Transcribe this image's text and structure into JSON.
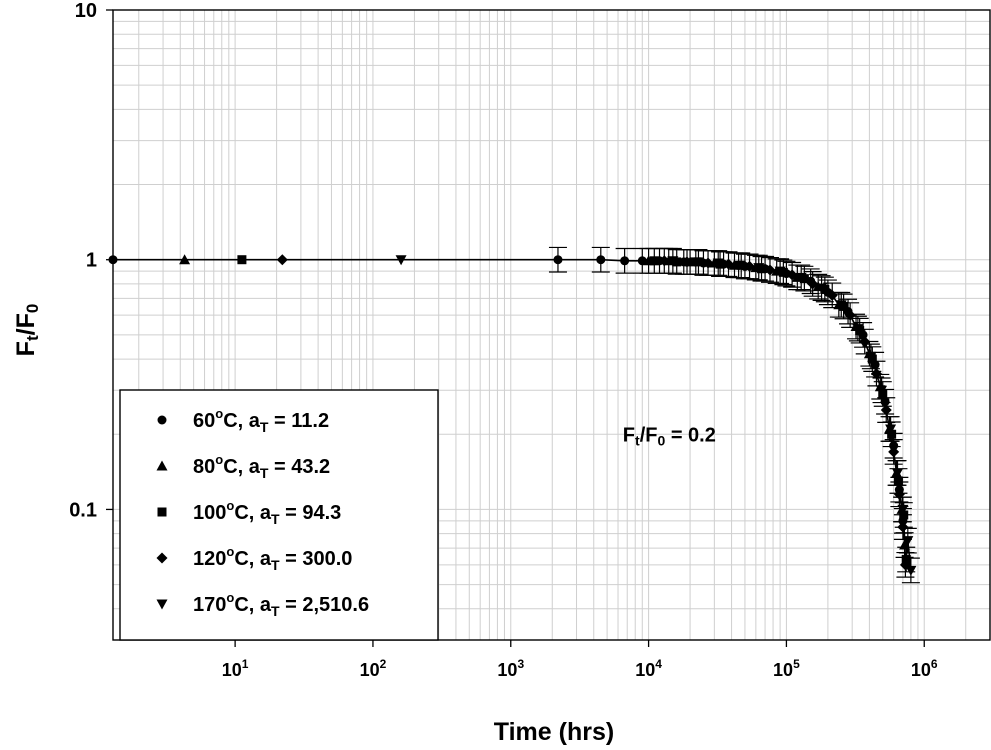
{
  "chart_data": {
    "type": "scatter",
    "title": "",
    "xlabel": "Time (hrs)",
    "ylabel": {
      "base": "F",
      "sub1": "t",
      "slash": "/F",
      "sub2": "0"
    },
    "x_scale": "log",
    "y_scale": "log",
    "xlim": [
      1.3,
      3000000
    ],
    "ylim": [
      0.03,
      10
    ],
    "grid": true,
    "legend_position": "bottom-left",
    "x_ticks": [
      {
        "base": "10",
        "exp": "1",
        "value": 10
      },
      {
        "base": "10",
        "exp": "2",
        "value": 100
      },
      {
        "base": "10",
        "exp": "3",
        "value": 1000
      },
      {
        "base": "10",
        "exp": "4",
        "value": 10000
      },
      {
        "base": "10",
        "exp": "5",
        "value": 100000
      },
      {
        "base": "10",
        "exp": "6",
        "value": 1000000
      }
    ],
    "y_ticks": [
      {
        "label": "0.1",
        "value": 0.1
      },
      {
        "label": "1",
        "value": 1
      },
      {
        "label": "10",
        "value": 10
      }
    ],
    "annotation": {
      "base": "F",
      "sub1": "t",
      "slash": "/F",
      "sub2": "0",
      "rest": " = 0.2",
      "x": 6500,
      "y": 0.2
    },
    "series": [
      {
        "name_pre": "60",
        "name_mid": "C, a",
        "name_sub": "T",
        "name_post": " = 11.2",
        "marker": "circle",
        "x": [
          1.3,
          2200,
          4500,
          6700,
          9000,
          12000,
          18000,
          25000,
          35000,
          50000,
          70000,
          100000,
          150000,
          200000,
          280000,
          360000,
          440000,
          520000,
          600000,
          660000,
          700000
        ],
        "y": [
          1.0,
          1.0,
          1.0,
          0.99,
          0.99,
          0.99,
          0.98,
          0.97,
          0.96,
          0.94,
          0.92,
          0.88,
          0.82,
          0.74,
          0.62,
          0.5,
          0.38,
          0.27,
          0.18,
          0.12,
          0.09
        ]
      },
      {
        "name_pre": "80",
        "name_mid": "C, a",
        "name_sub": "T",
        "name_post": " = 43.2",
        "marker": "triangle",
        "x": [
          4.3,
          10000,
          14000,
          20000,
          30000,
          42000,
          60000,
          85000,
          120000,
          170000,
          240000,
          320000,
          400000,
          480000,
          560000,
          630000,
          690000,
          720000
        ],
        "y": [
          1.0,
          0.99,
          0.99,
          0.98,
          0.97,
          0.95,
          0.93,
          0.9,
          0.85,
          0.78,
          0.66,
          0.54,
          0.42,
          0.31,
          0.21,
          0.14,
          0.1,
          0.072
        ]
      },
      {
        "name_pre": "100",
        "name_mid": "C, a",
        "name_sub": "T",
        "name_post": " = 94.3",
        "marker": "square",
        "x": [
          11.2,
          11000,
          16000,
          23000,
          33000,
          47000,
          66000,
          95000,
          135000,
          190000,
          260000,
          340000,
          420000,
          500000,
          580000,
          650000,
          710000,
          740000
        ],
        "y": [
          1.0,
          0.99,
          0.98,
          0.98,
          0.96,
          0.95,
          0.92,
          0.89,
          0.84,
          0.76,
          0.65,
          0.52,
          0.4,
          0.29,
          0.2,
          0.13,
          0.095,
          0.063
        ]
      },
      {
        "name_pre": "120",
        "name_mid": "C, a",
        "name_sub": "T",
        "name_post": " = 300.0",
        "marker": "diamond",
        "x": [
          22,
          13000,
          19000,
          27000,
          38000,
          54000,
          76000,
          110000,
          155000,
          215000,
          290000,
          370000,
          450000,
          530000,
          600000,
          660000,
          700000,
          730000
        ],
        "y": [
          1.0,
          0.99,
          0.98,
          0.97,
          0.96,
          0.94,
          0.91,
          0.87,
          0.8,
          0.72,
          0.6,
          0.47,
          0.35,
          0.25,
          0.17,
          0.115,
          0.085,
          0.06
        ]
      },
      {
        "name_pre": "170",
        "name_mid": "C, a",
        "name_sub": "T",
        "name_post": " = 2,510.6",
        "marker": "triangle-down",
        "x": [
          160,
          15000,
          22000,
          32000,
          45000,
          63000,
          90000,
          128000,
          180000,
          250000,
          330000,
          410000,
          490000,
          570000,
          640000,
          700000,
          760000,
          800000
        ],
        "y": [
          1.0,
          0.99,
          0.98,
          0.97,
          0.95,
          0.93,
          0.9,
          0.85,
          0.77,
          0.66,
          0.53,
          0.41,
          0.3,
          0.21,
          0.14,
          0.1,
          0.075,
          0.057
        ]
      }
    ]
  }
}
